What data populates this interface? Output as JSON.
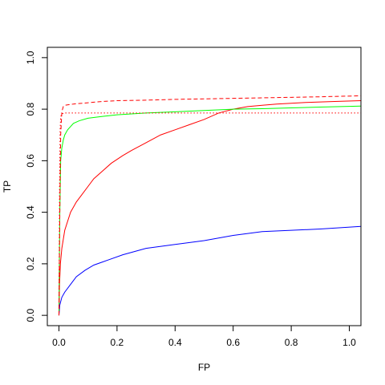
{
  "chart_data": {
    "type": "line",
    "title": "",
    "xlabel": "FP",
    "ylabel": "TP",
    "xlim": [
      -0.04,
      1.04
    ],
    "ylim": [
      -0.04,
      1.04
    ],
    "xticks": [
      "0.0",
      "0.2",
      "0.4",
      "0.6",
      "0.8",
      "1.0"
    ],
    "yticks": [
      "0.0",
      "0.2",
      "0.4",
      "0.6",
      "0.8",
      "1.0"
    ],
    "grid": false,
    "legend": "none",
    "series": [
      {
        "color": "#0000ff",
        "style": "solid",
        "x": [
          0.0,
          0.003,
          0.01,
          0.02,
          0.04,
          0.06,
          0.09,
          0.12,
          0.17,
          0.22,
          0.3,
          0.4,
          0.5,
          0.6,
          0.7,
          0.8,
          0.9,
          1.04
        ],
        "y": [
          0.0,
          0.04,
          0.07,
          0.09,
          0.12,
          0.15,
          0.175,
          0.195,
          0.215,
          0.235,
          0.26,
          0.275,
          0.29,
          0.31,
          0.325,
          0.33,
          0.335,
          0.345
        ]
      },
      {
        "color": "#ff0000",
        "style": "solid",
        "x": [
          0.0,
          0.002,
          0.005,
          0.01,
          0.02,
          0.04,
          0.06,
          0.08,
          0.1,
          0.12,
          0.15,
          0.18,
          0.22,
          0.25,
          0.3,
          0.35,
          0.4,
          0.45,
          0.5,
          0.55,
          0.6,
          0.65,
          0.7,
          0.75,
          0.8,
          0.85,
          0.9,
          0.95,
          1.04
        ],
        "y": [
          0.0,
          0.12,
          0.2,
          0.26,
          0.33,
          0.4,
          0.44,
          0.47,
          0.5,
          0.53,
          0.56,
          0.59,
          0.62,
          0.64,
          0.67,
          0.7,
          0.72,
          0.74,
          0.76,
          0.785,
          0.8,
          0.81,
          0.815,
          0.82,
          0.823,
          0.826,
          0.828,
          0.83,
          0.833
        ]
      },
      {
        "color": "#00ff00",
        "style": "solid",
        "x": [
          0.0,
          0.003,
          0.006,
          0.01,
          0.015,
          0.02,
          0.03,
          0.05,
          0.07,
          0.1,
          0.15,
          0.2,
          0.3,
          0.4,
          0.5,
          0.6,
          0.7,
          0.8,
          0.9,
          1.04
        ],
        "y": [
          0.0,
          0.4,
          0.6,
          0.65,
          0.68,
          0.7,
          0.72,
          0.745,
          0.755,
          0.765,
          0.772,
          0.778,
          0.785,
          0.79,
          0.795,
          0.8,
          0.802,
          0.805,
          0.808,
          0.812
        ]
      },
      {
        "color": "#ff0000",
        "style": "dashed",
        "x": [
          0.0,
          0.003,
          0.006,
          0.01,
          0.015,
          0.02,
          0.05,
          0.1,
          0.15,
          0.2,
          0.3,
          0.4,
          0.5,
          0.6,
          0.7,
          0.8,
          0.9,
          1.04
        ],
        "y": [
          0.0,
          0.4,
          0.7,
          0.79,
          0.81,
          0.815,
          0.82,
          0.825,
          0.83,
          0.833,
          0.835,
          0.838,
          0.84,
          0.842,
          0.844,
          0.846,
          0.848,
          0.852
        ]
      },
      {
        "color": "#ff0000",
        "style": "dotted",
        "x": [
          0.0,
          0.002,
          0.004,
          0.006,
          0.01,
          0.02,
          0.1,
          0.3,
          0.5,
          0.7,
          0.9,
          1.04
        ],
        "y": [
          0.0,
          0.5,
          0.72,
          0.77,
          0.782,
          0.785,
          0.785,
          0.785,
          0.785,
          0.785,
          0.785,
          0.785
        ]
      }
    ]
  }
}
